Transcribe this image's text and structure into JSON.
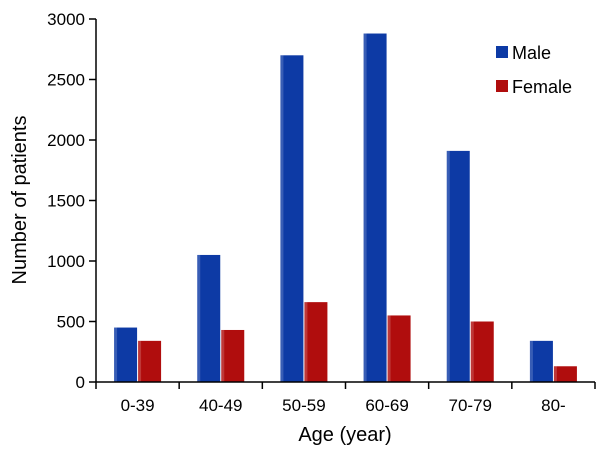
{
  "chart_data": {
    "type": "bar",
    "title": "",
    "xlabel": "Age (year)",
    "ylabel": "Number of patients",
    "categories": [
      "0-39",
      "40-49",
      "50-59",
      "60-69",
      "70-79",
      "80-"
    ],
    "series": [
      {
        "name": "Male",
        "color": "#0d3aa5",
        "values": [
          450,
          1050,
          2700,
          2880,
          1910,
          340
        ]
      },
      {
        "name": "Female",
        "color": "#b00d0d",
        "values": [
          340,
          430,
          660,
          550,
          500,
          130
        ]
      }
    ],
    "ylim": [
      0,
      3000
    ],
    "yticks": [
      0,
      500,
      1000,
      1500,
      2000,
      2500,
      3000
    ],
    "grid": false,
    "legend_position": "top-right"
  }
}
